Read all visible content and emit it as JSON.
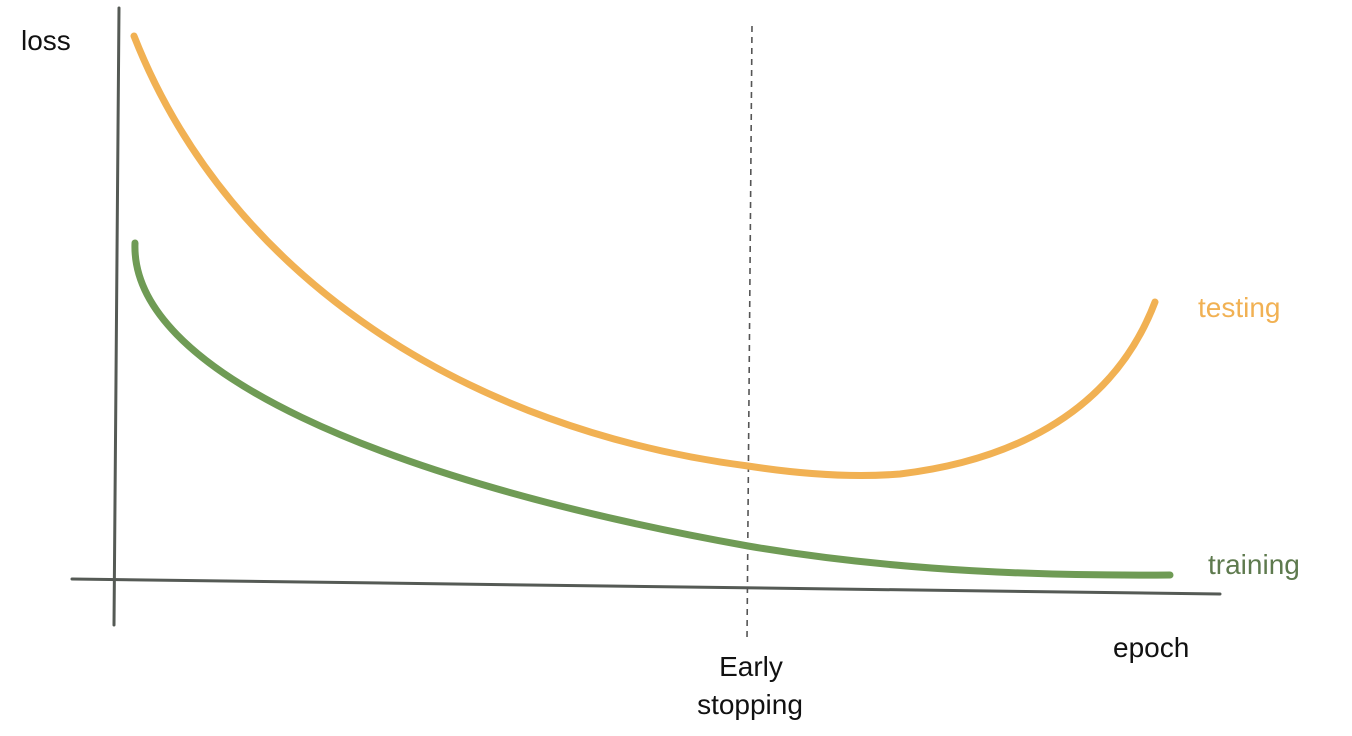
{
  "labels": {
    "y_axis": "loss",
    "x_axis": "epoch",
    "testing": "testing",
    "training": "training",
    "early_line1": "Early",
    "early_line2": "stopping"
  },
  "colors": {
    "axis": "#555a55",
    "testing": "#f1b153",
    "training": "#6f9b55",
    "training_label": "#5e7a4e",
    "dashed": "#555555",
    "text": "#111111"
  }
}
